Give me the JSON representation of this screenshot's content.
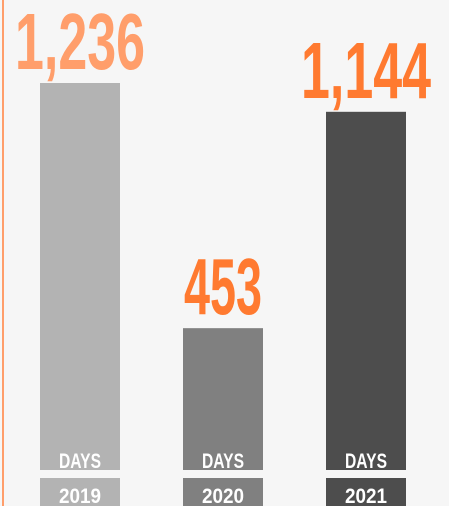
{
  "chart_data": {
    "type": "bar",
    "categories": [
      "2019",
      "2020",
      "2021"
    ],
    "values": [
      1236,
      453,
      1144
    ],
    "value_labels": [
      "1,236",
      "453",
      "1,144"
    ],
    "unit": "DAYS",
    "colors": [
      "#b3b3b3",
      "#808080",
      "#4d4d4d"
    ],
    "label_colors": [
      "#ff9e6b",
      "#ff7a30",
      "#ff7a30"
    ]
  }
}
